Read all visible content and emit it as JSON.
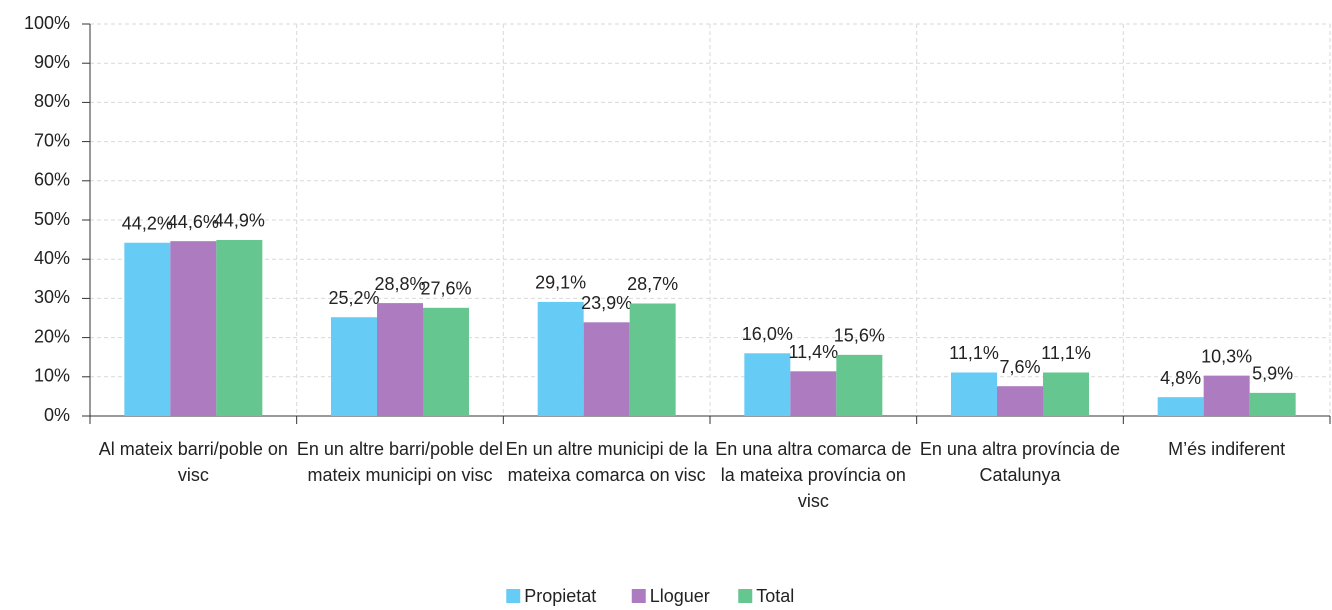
{
  "chart_data": {
    "type": "bar",
    "categories": [
      "Al mateix barri/poble on visc",
      "En un altre barri/poble del mateix municipi on visc",
      "En un altre municipi de la mateixa comarca on visc",
      "En una altra comarca de la mateixa província on visc",
      "En una altra província de Catalunya",
      "M’és indiferent"
    ],
    "series": [
      {
        "name": "Propietat",
        "color": "#66ccf5",
        "values": [
          44.2,
          25.2,
          29.1,
          16.0,
          11.1,
          4.8
        ],
        "value_labels": [
          "44,2%",
          "25,2%",
          "29,1%",
          "16,0%",
          "11,1%",
          "4,8%"
        ]
      },
      {
        "name": "Lloguer",
        "color": "#ad7bbf",
        "values": [
          44.6,
          28.8,
          23.9,
          11.4,
          7.6,
          10.3
        ],
        "value_labels": [
          "44,6%",
          "28,8%",
          "23,9%",
          "11,4%",
          "7,6%",
          "10,3%"
        ]
      },
      {
        "name": "Total",
        "color": "#66c68f",
        "values": [
          44.9,
          27.6,
          28.7,
          15.6,
          11.1,
          5.9
        ],
        "value_labels": [
          "44,9%",
          "27,6%",
          "28,7%",
          "15,6%",
          "11,1%",
          "5,9%"
        ]
      }
    ],
    "ylim": [
      0,
      100
    ],
    "yticks": [
      {
        "value": 0,
        "label": "0%"
      },
      {
        "value": 10,
        "label": "10%"
      },
      {
        "value": 20,
        "label": "20%"
      },
      {
        "value": 30,
        "label": "30%"
      },
      {
        "value": 40,
        "label": "40%"
      },
      {
        "value": 50,
        "label": "50%"
      },
      {
        "value": 60,
        "label": "60%"
      },
      {
        "value": 70,
        "label": "70%"
      },
      {
        "value": 80,
        "label": "80%"
      },
      {
        "value": 90,
        "label": "90%"
      },
      {
        "value": 100,
        "label": "100%"
      }
    ],
    "grid": true,
    "legend": "bottom"
  }
}
